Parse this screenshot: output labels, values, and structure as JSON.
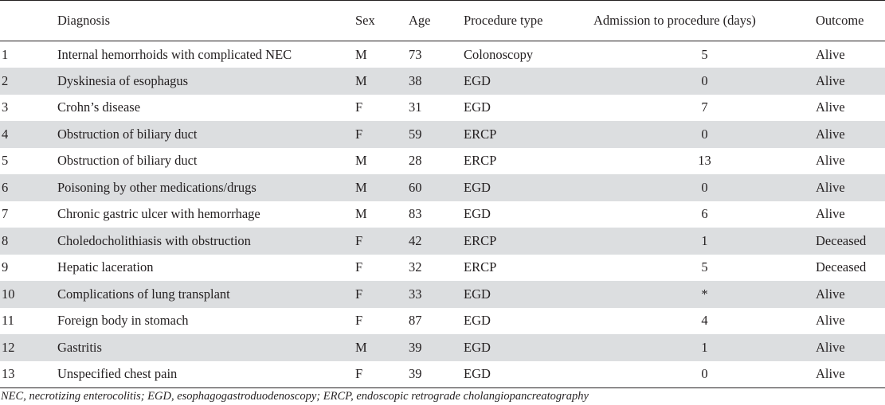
{
  "table": {
    "headers": {
      "no": "",
      "diagnosis": "Diagnosis",
      "sex": "Sex",
      "age": "Age",
      "procedure": "Procedure type",
      "admission": "Admission to procedure (days)",
      "outcome": "Outcome"
    },
    "rows": [
      {
        "no": "1",
        "diagnosis": "Internal hemorrhoids with complicated NEC",
        "sex": "M",
        "age": "73",
        "procedure": "Colonoscopy",
        "admission": "5",
        "outcome": "Alive"
      },
      {
        "no": "2",
        "diagnosis": "Dyskinesia of esophagus",
        "sex": "M",
        "age": "38",
        "procedure": "EGD",
        "admission": "0",
        "outcome": "Alive"
      },
      {
        "no": "3",
        "diagnosis": "Crohn’s disease",
        "sex": "F",
        "age": "31",
        "procedure": "EGD",
        "admission": "7",
        "outcome": "Alive"
      },
      {
        "no": "4",
        "diagnosis": "Obstruction of biliary duct",
        "sex": "F",
        "age": "59",
        "procedure": "ERCP",
        "admission": "0",
        "outcome": "Alive"
      },
      {
        "no": "5",
        "diagnosis": "Obstruction of biliary duct",
        "sex": "M",
        "age": "28",
        "procedure": "ERCP",
        "admission": "13",
        "outcome": "Alive"
      },
      {
        "no": "6",
        "diagnosis": "Poisoning by other medications/drugs",
        "sex": "M",
        "age": "60",
        "procedure": "EGD",
        "admission": "0",
        "outcome": "Alive"
      },
      {
        "no": "7",
        "diagnosis": "Chronic gastric ulcer with hemorrhage",
        "sex": "M",
        "age": "83",
        "procedure": "EGD",
        "admission": "6",
        "outcome": "Alive"
      },
      {
        "no": "8",
        "diagnosis": "Choledocholithiasis with obstruction",
        "sex": "F",
        "age": "42",
        "procedure": "ERCP",
        "admission": "1",
        "outcome": "Deceased"
      },
      {
        "no": "9",
        "diagnosis": "Hepatic laceration",
        "sex": "F",
        "age": "32",
        "procedure": "ERCP",
        "admission": "5",
        "outcome": "Deceased"
      },
      {
        "no": "10",
        "diagnosis": "Complications of lung transplant",
        "sex": "F",
        "age": "33",
        "procedure": "EGD",
        "admission": "*",
        "outcome": "Alive"
      },
      {
        "no": "11",
        "diagnosis": "Foreign body in stomach",
        "sex": "F",
        "age": "87",
        "procedure": "EGD",
        "admission": "4",
        "outcome": "Alive"
      },
      {
        "no": "12",
        "diagnosis": "Gastritis",
        "sex": "M",
        "age": "39",
        "procedure": "EGD",
        "admission": "1",
        "outcome": "Alive"
      },
      {
        "no": "13",
        "diagnosis": "Unspecified chest pain",
        "sex": "F",
        "age": "39",
        "procedure": "EGD",
        "admission": "0",
        "outcome": "Alive"
      }
    ]
  },
  "footnote": "NEC, necrotizing enterocolitis; EGD, esophagogastroduodenoscopy; ERCP, endoscopic retrograde cholangiopancreatography"
}
